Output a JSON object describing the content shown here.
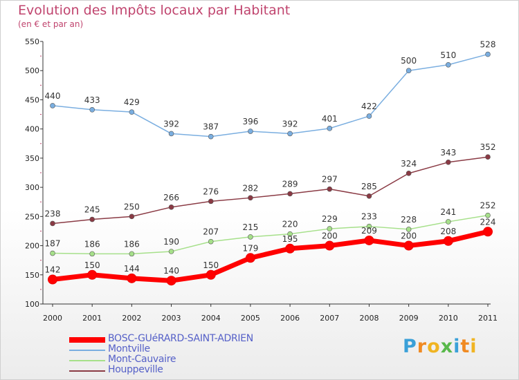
{
  "title": "Evolution des Impôts locaux par Habitant",
  "subtitle": "(en € et par an)",
  "logo": {
    "letters": [
      {
        "ch": "P",
        "color": "#3aa0d8"
      },
      {
        "ch": "r",
        "color": "#f08a22"
      },
      {
        "ch": "o",
        "color": "#f0b422"
      },
      {
        "ch": "x",
        "color": "#58b84a"
      },
      {
        "ch": "i",
        "color": "#3aa0d8"
      },
      {
        "ch": "t",
        "color": "#f08a22"
      },
      {
        "ch": "i",
        "color": "#f0b422"
      }
    ]
  },
  "chart_data": {
    "type": "line",
    "title": "Evolution des Impôts locaux par Habitant",
    "subtitle": "(en € et par an)",
    "xlabel": "",
    "ylabel": "",
    "x": [
      "2000",
      "2001",
      "2002",
      "2003",
      "2004",
      "2005",
      "2006",
      "2007",
      "2008",
      "2009",
      "2010",
      "2011"
    ],
    "ylim": [
      100,
      550
    ],
    "yticks": [
      100,
      150,
      200,
      250,
      300,
      350,
      400,
      450,
      500,
      550
    ],
    "grid": false,
    "legend": "bottom-left",
    "series": [
      {
        "name": "BOSC-GUéRARD-SAINT-ADRIEN",
        "color": "#ff0000",
        "values": [
          142,
          150,
          144,
          140,
          150,
          179,
          195,
          200,
          209,
          200,
          208,
          224
        ]
      },
      {
        "name": "Montville",
        "color": "#7aaee0",
        "values": [
          440,
          433,
          429,
          392,
          387,
          396,
          392,
          401,
          422,
          500,
          510,
          528
        ]
      },
      {
        "name": "Mont-Cauvaire",
        "color": "#a6e08a",
        "values": [
          187,
          186,
          186,
          190,
          207,
          215,
          220,
          229,
          233,
          228,
          241,
          252
        ]
      },
      {
        "name": "Houppeville",
        "color": "#8a3a44",
        "values": [
          238,
          245,
          250,
          266,
          276,
          282,
          289,
          297,
          285,
          324,
          343,
          352
        ]
      }
    ]
  }
}
